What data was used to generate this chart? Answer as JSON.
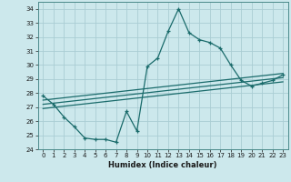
{
  "title": "",
  "xlabel": "Humidex (Indice chaleur)",
  "bg_color": "#cce8ec",
  "grid_color": "#aacdd4",
  "line_color": "#1a6b6b",
  "xlim": [
    -0.5,
    23.5
  ],
  "ylim": [
    24,
    34.5
  ],
  "yticks": [
    24,
    25,
    26,
    27,
    28,
    29,
    30,
    31,
    32,
    33,
    34
  ],
  "xticks": [
    0,
    1,
    2,
    3,
    4,
    5,
    6,
    7,
    8,
    9,
    10,
    11,
    12,
    13,
    14,
    15,
    16,
    17,
    18,
    19,
    20,
    21,
    22,
    23
  ],
  "line1_x": [
    0,
    1,
    2,
    3,
    4,
    5,
    6,
    7,
    8,
    9,
    10,
    11,
    12,
    13,
    14,
    15,
    16,
    17,
    18,
    19,
    20,
    21,
    22,
    23
  ],
  "line1_y": [
    27.8,
    27.2,
    26.3,
    25.6,
    24.8,
    24.7,
    24.7,
    24.5,
    26.7,
    25.3,
    29.9,
    30.5,
    32.4,
    34.0,
    32.3,
    31.8,
    31.6,
    31.2,
    30.0,
    28.9,
    28.5,
    28.7,
    28.9,
    29.3
  ],
  "line2_x": [
    0,
    23
  ],
  "line2_y": [
    27.5,
    29.4
  ],
  "line3_x": [
    0,
    23
  ],
  "line3_y": [
    27.2,
    29.1
  ],
  "line4_x": [
    0,
    23
  ],
  "line4_y": [
    26.9,
    28.8
  ]
}
